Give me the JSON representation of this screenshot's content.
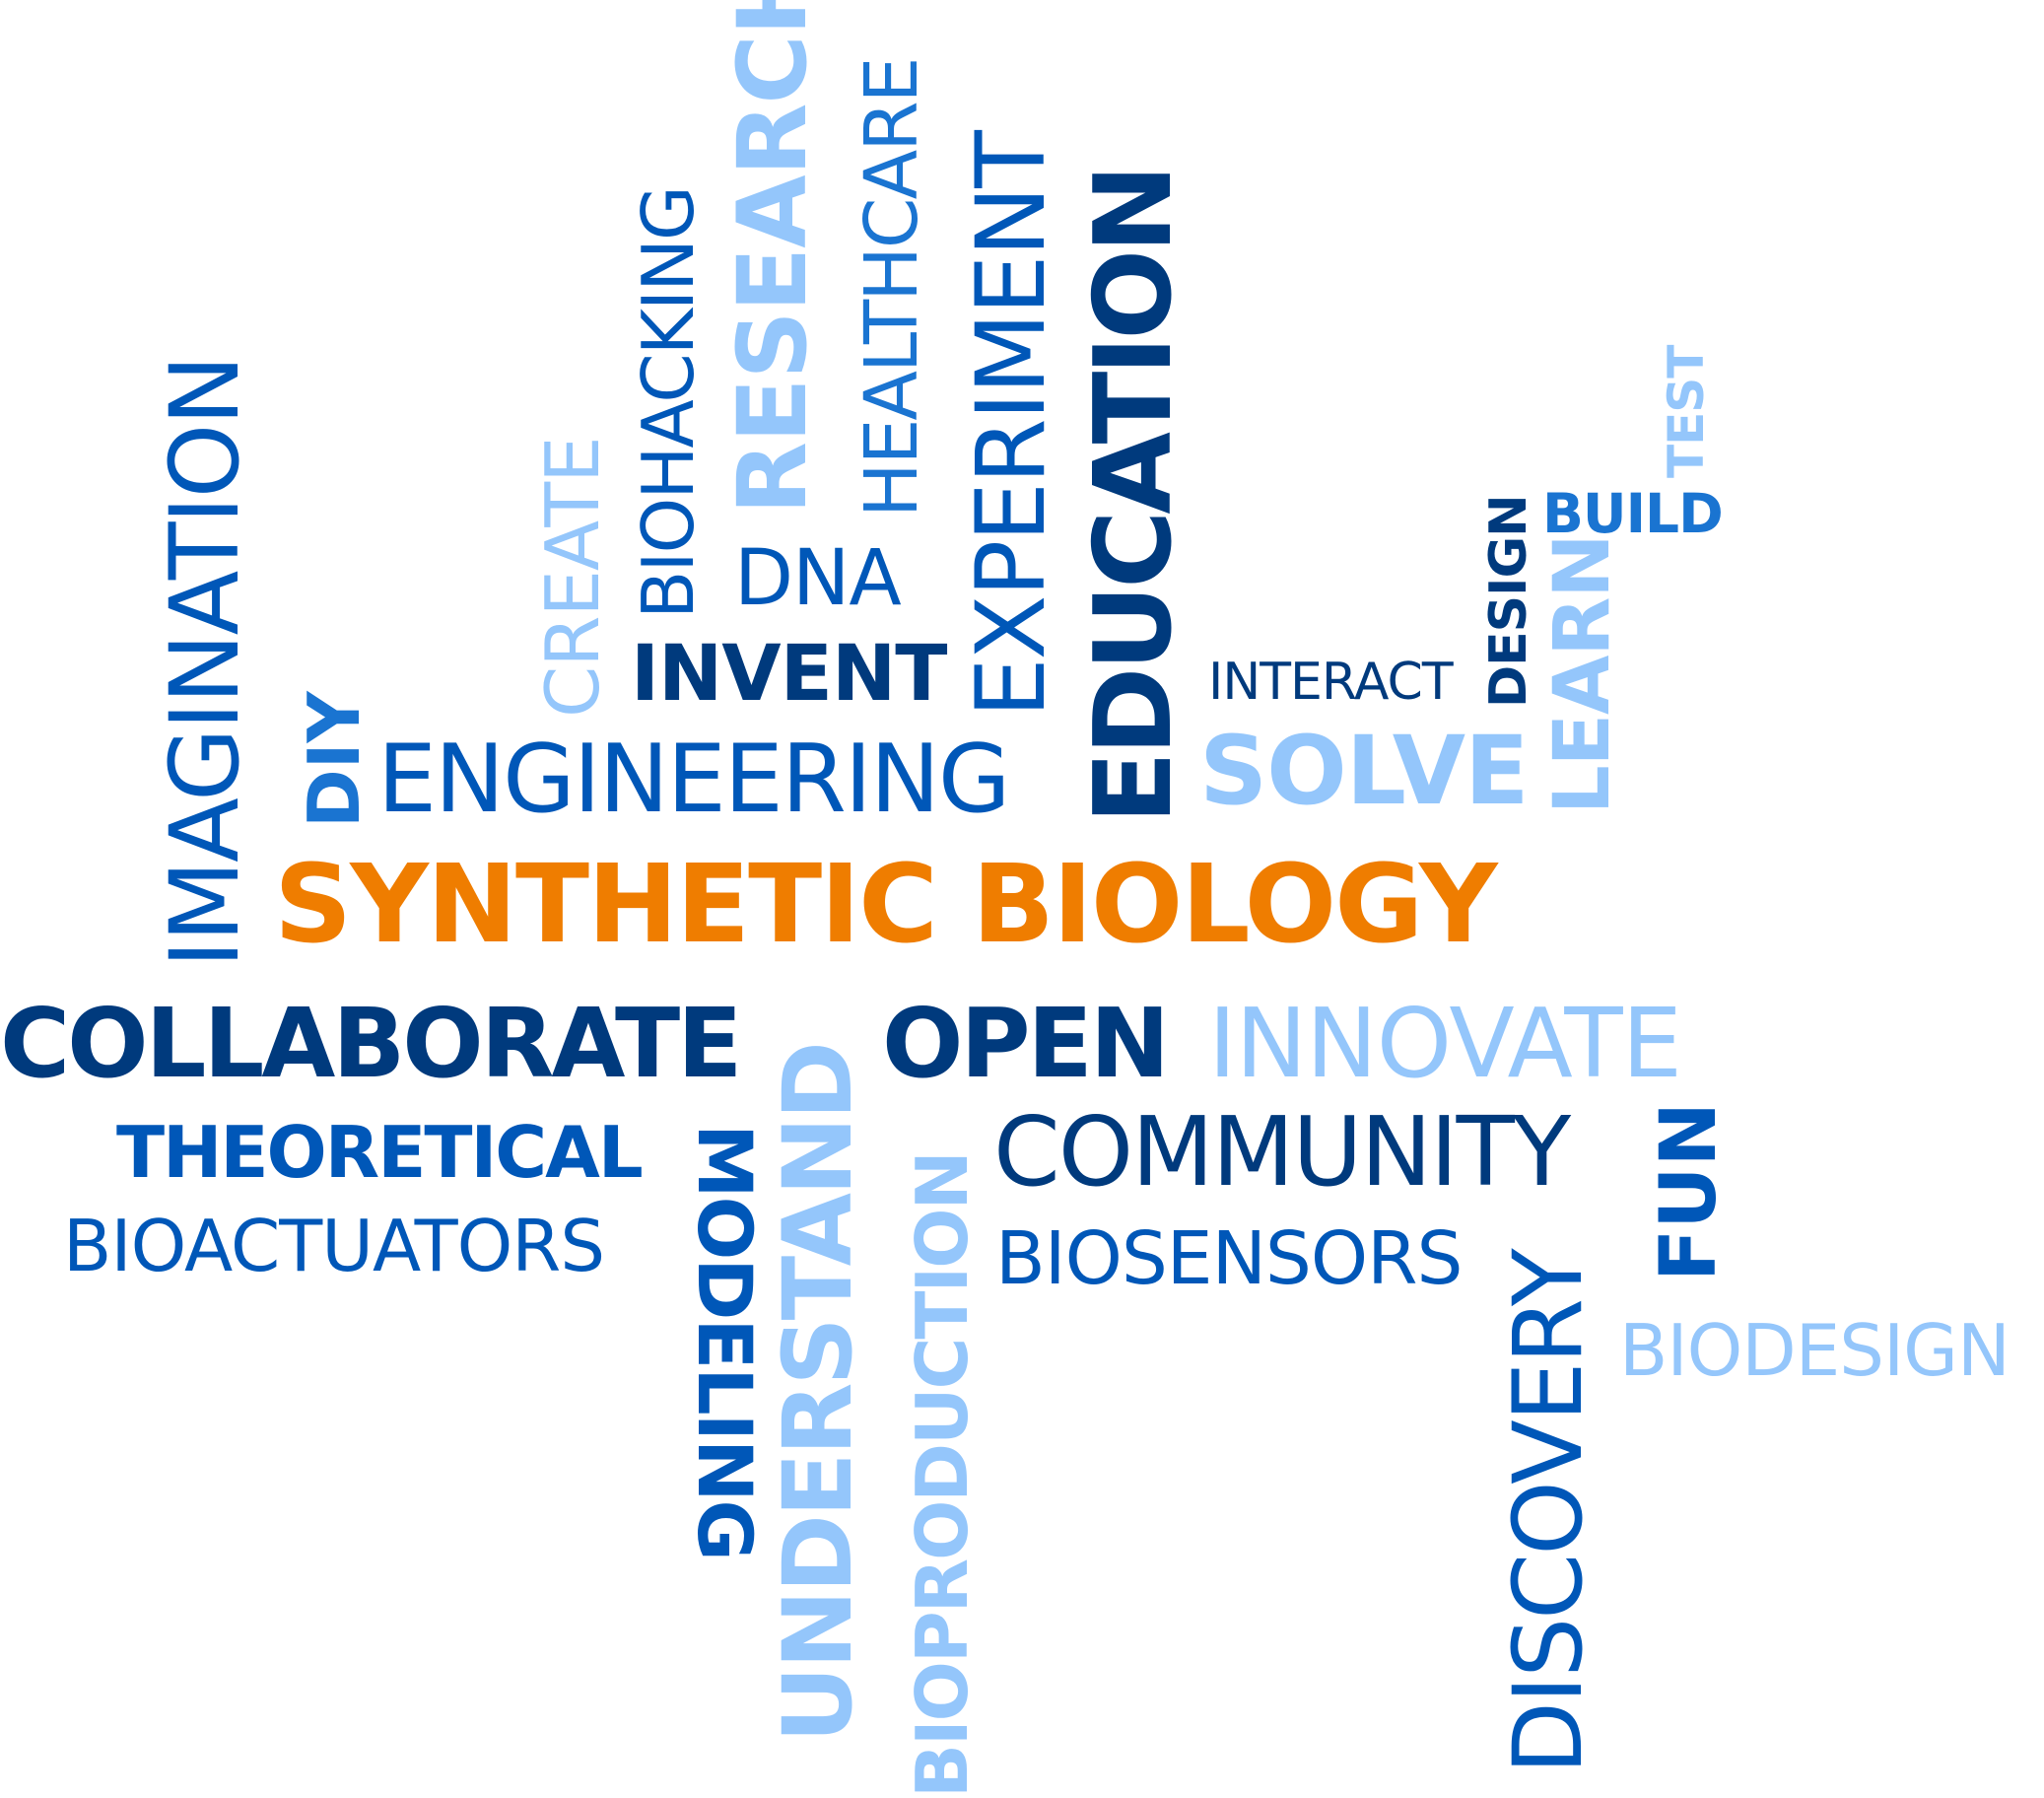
{
  "colors": {
    "orange": "#ef7d00",
    "navy": "#003a7d",
    "blue": "#0057b8",
    "mid": "#1a74d1",
    "light": "#94c6fb"
  },
  "words": {
    "synthetic_biology": "SYNTHETIC BIOLOGY",
    "imagination": "IMAGINATION",
    "diy": "DIY",
    "engineering": "ENGINEERING",
    "create": "CREATE",
    "biohacking": "BIOHACKING",
    "research": "RESEARCH",
    "dna": "DNA",
    "healthcare": "HEALTHCARE",
    "invent": "INVENT",
    "experiment": "EXPERIMENT",
    "education": "EDUCATION",
    "interact": "INTERACT",
    "design": "DESIGN",
    "build": "BUILD",
    "test": "TEST",
    "learn": "LEARN",
    "solve": "SOLVE",
    "collaborate": "COLLABORATE",
    "open": "OPEN",
    "innovate": "INNOVATE",
    "theoretical": "THEORETICAL",
    "bioactuators": "BIOACTUATORS",
    "modeling": "MODELING",
    "understand": "UNDERSTAND",
    "bioproduction": "BIOPRODUCTION",
    "community": "COMMUNITY",
    "biosensors": "BIOSENSORS",
    "discovery": "DISCOVERY",
    "fun": "FUN",
    "biodesign": "BIODESIGN"
  }
}
